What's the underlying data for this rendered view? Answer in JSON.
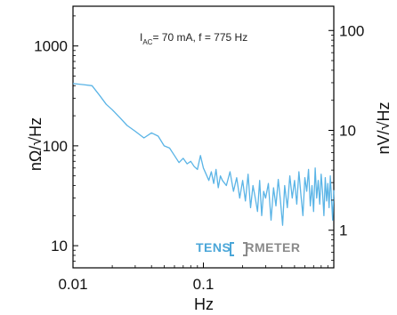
{
  "chart_data": {
    "type": "line",
    "annotation": {
      "prefix": "I",
      "subscript": "AC",
      "rest": "= 70 mA, f = 775 Hz"
    },
    "xlabel": "Hz",
    "ylabel_left": "nΩ/√Hz",
    "ylabel_right": "nV/√Hz",
    "x_scale": "log",
    "y_scale": "log",
    "xlim": [
      0.01,
      1.0
    ],
    "ylim_left": [
      6,
      2500
    ],
    "ylim_right": [
      0.42,
      175
    ],
    "x_ticks": [
      {
        "value": 0.01,
        "label": "0.01"
      },
      {
        "value": 0.1,
        "label": "0.1"
      }
    ],
    "y_ticks_left": [
      {
        "value": 10,
        "label": "10"
      },
      {
        "value": 100,
        "label": "100"
      },
      {
        "value": 1000,
        "label": "1000"
      }
    ],
    "y_ticks_right": [
      {
        "value": 1,
        "label": "1"
      },
      {
        "value": 10,
        "label": "10"
      },
      {
        "value": 100,
        "label": "100"
      }
    ],
    "grid": false,
    "line_color": "#5ab4e6",
    "series": [
      {
        "x": [
          0.01,
          0.012,
          0.014,
          0.016,
          0.018,
          0.02,
          0.023,
          0.026,
          0.03,
          0.035,
          0.04,
          0.045,
          0.05,
          0.055,
          0.06,
          0.065,
          0.07,
          0.075,
          0.08,
          0.085,
          0.09,
          0.095,
          0.1,
          0.105,
          0.11,
          0.115,
          0.12,
          0.125,
          0.13,
          0.135,
          0.14,
          0.15,
          0.16,
          0.17,
          0.18,
          0.19,
          0.2,
          0.21,
          0.22,
          0.23,
          0.24,
          0.25,
          0.26,
          0.27,
          0.28,
          0.29,
          0.3,
          0.315,
          0.33,
          0.345,
          0.36,
          0.375,
          0.39,
          0.405,
          0.42,
          0.44,
          0.46,
          0.48,
          0.5,
          0.52,
          0.54,
          0.56,
          0.58,
          0.6,
          0.62,
          0.64,
          0.66,
          0.68,
          0.7,
          0.72,
          0.74,
          0.76,
          0.78,
          0.8,
          0.82,
          0.84,
          0.86,
          0.88,
          0.9,
          0.92,
          0.94,
          0.96,
          0.98,
          1.0
        ],
        "y": [
          420,
          410,
          400,
          320,
          260,
          230,
          190,
          160,
          140,
          120,
          135,
          125,
          100,
          95,
          80,
          68,
          75,
          66,
          70,
          62,
          58,
          80,
          60,
          52,
          45,
          55,
          42,
          58,
          38,
          50,
          45,
          40,
          55,
          35,
          48,
          30,
          45,
          28,
          52,
          24,
          40,
          30,
          22,
          45,
          20,
          35,
          30,
          42,
          18,
          38,
          25,
          46,
          28,
          16,
          40,
          24,
          50,
          30,
          45,
          26,
          55,
          32,
          20,
          48,
          35,
          58,
          25,
          40,
          22,
          60,
          30,
          45,
          26,
          52,
          34,
          20,
          48,
          28,
          42,
          24,
          50,
          30,
          18,
          36
        ]
      }
    ]
  },
  "brand": {
    "part1": "TENS",
    "part2": "RMETER",
    "color1": "#4aa6d8",
    "color2": "#8a8a8a"
  }
}
